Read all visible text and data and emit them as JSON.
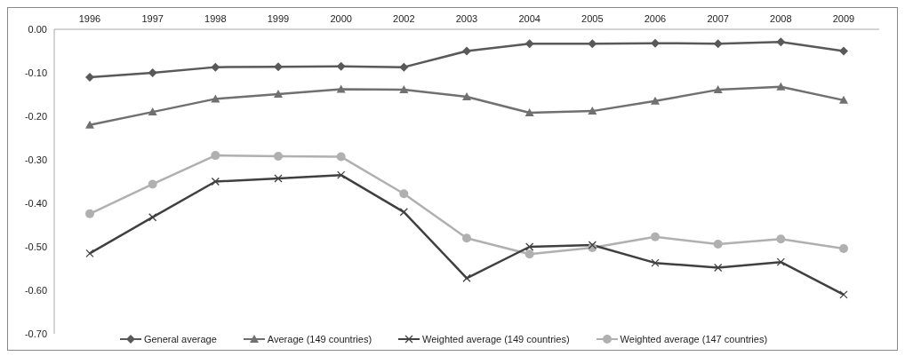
{
  "chart_data": {
    "type": "line",
    "categories": [
      "1996",
      "1997",
      "1998",
      "1999",
      "2000",
      "2002",
      "2003",
      "2004",
      "2005",
      "2006",
      "2007",
      "2008",
      "2009"
    ],
    "series": [
      {
        "name": "General average",
        "color": "#595959",
        "marker": "diamond",
        "values": [
          -0.11,
          -0.1,
          -0.087,
          -0.086,
          -0.085,
          -0.087,
          -0.05,
          -0.033,
          -0.033,
          -0.032,
          -0.033,
          -0.029,
          -0.05
        ]
      },
      {
        "name": "Average (149 countries)",
        "color": "#707070",
        "marker": "triangle",
        "values": [
          -0.22,
          -0.19,
          -0.16,
          -0.149,
          -0.138,
          -0.139,
          -0.155,
          -0.192,
          -0.188,
          -0.165,
          -0.139,
          -0.132,
          -0.163
        ]
      },
      {
        "name": "Weighted average (149 countries)",
        "color": "#404040",
        "marker": "cross",
        "values": [
          -0.515,
          -0.432,
          -0.35,
          -0.343,
          -0.335,
          -0.42,
          -0.572,
          -0.5,
          -0.496,
          -0.537,
          -0.548,
          -0.535,
          -0.61
        ]
      },
      {
        "name": "Weighted average (147 countries)",
        "color": "#b0b0b0",
        "marker": "circle",
        "values": [
          -0.424,
          -0.356,
          -0.29,
          -0.292,
          -0.293,
          -0.378,
          -0.48,
          -0.517,
          -0.502,
          -0.477,
          -0.494,
          -0.482,
          -0.504
        ]
      }
    ],
    "ylim": [
      -0.7,
      0
    ],
    "yticks": [
      {
        "value": 0,
        "label": "0.00"
      },
      {
        "value": -0.1,
        "label": "-0.10"
      },
      {
        "value": -0.2,
        "label": "-0.20"
      },
      {
        "value": -0.3,
        "label": "-0.30"
      },
      {
        "value": -0.4,
        "label": "-0.40"
      },
      {
        "value": -0.5,
        "label": "-0.50"
      },
      {
        "value": -0.6,
        "label": "-0.60"
      },
      {
        "value": -0.7,
        "label": "-0.70"
      }
    ],
    "grid": false,
    "legend": "bottom",
    "line_style": "solid"
  }
}
